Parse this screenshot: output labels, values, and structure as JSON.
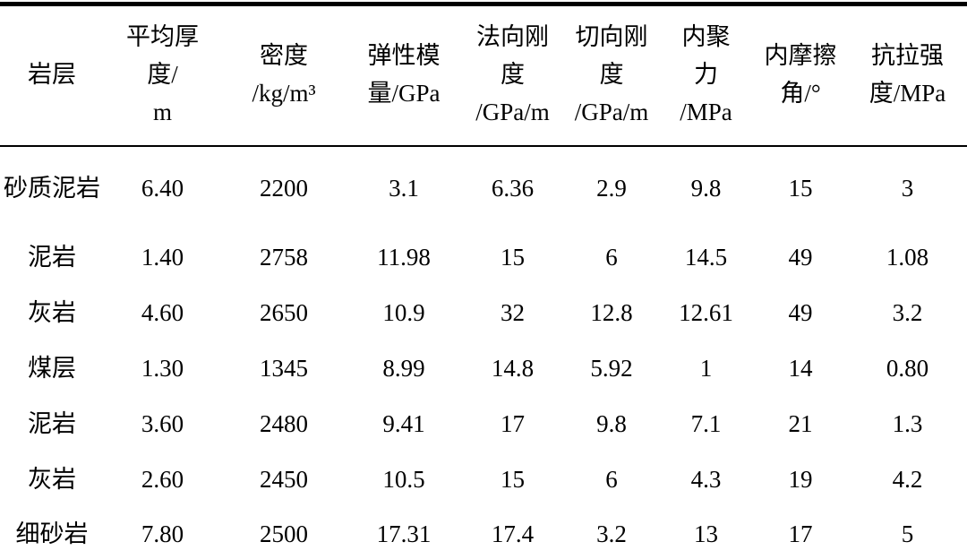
{
  "table": {
    "title": "rock-layer-mechanical-parameters",
    "columns": [
      "岩层",
      "平均厚\n度/\nm",
      "密度\n/kg/m³",
      "弹性模\n量/GPa",
      "法向刚\n度\n/GPa/m",
      "切向刚\n度\n/GPa/m",
      "内聚\n力\n/MPa",
      "内摩擦\n角/°",
      "抗拉强\n度/MPa"
    ],
    "rows": [
      {
        "cells": [
          "砂质泥岩",
          "6.40",
          "2200",
          "3.1",
          "6.36",
          "2.9",
          "9.8",
          "15",
          "3"
        ]
      },
      {
        "cells": [
          "泥岩",
          "1.40",
          "2758",
          "11.98",
          "15",
          "6",
          "14.5",
          "49",
          "1.08"
        ]
      },
      {
        "cells": [
          "灰岩",
          "4.60",
          "2650",
          "10.9",
          "32",
          "12.8",
          "12.61",
          "49",
          "3.2"
        ]
      },
      {
        "cells": [
          "煤层",
          "1.30",
          "1345",
          "8.99",
          "14.8",
          "5.92",
          "1",
          "14",
          "0.80"
        ]
      },
      {
        "cells": [
          "泥岩",
          "3.60",
          "2480",
          "9.41",
          "17",
          "9.8",
          "7.1",
          "21",
          "1.3"
        ]
      },
      {
        "cells": [
          "灰岩",
          "2.60",
          "2450",
          "10.5",
          "15",
          "6",
          "4.3",
          "19",
          "4.2"
        ]
      },
      {
        "cells": [
          "细砂岩",
          "7.80",
          "2500",
          "17.31",
          "17.4",
          "3.2",
          "13",
          "17",
          "5"
        ]
      }
    ]
  },
  "colors": {
    "text": "#000000",
    "background": "#ffffff",
    "rule": "#000000"
  }
}
